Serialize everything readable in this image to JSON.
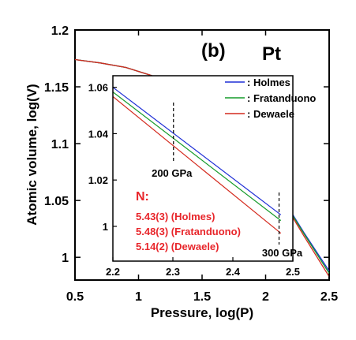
{
  "chart_data": [
    {
      "type": "line",
      "panel_label": "(b)",
      "element_label": "Pt",
      "xlabel": "Pressure, log(P)",
      "ylabel": "Atomic volume, log(V)",
      "xlim": [
        0.5,
        2.5
      ],
      "ylim": [
        0.98,
        1.2
      ],
      "x_ticks": [
        "0.5",
        "1",
        "1.5",
        "2",
        "2.5"
      ],
      "y_ticks": [
        "1",
        "1.05",
        "1.1",
        "1.15",
        "1.2"
      ],
      "series": [
        {
          "name": ": Holmes",
          "color": "#1f2fd6",
          "x": [
            0.5,
            0.7,
            0.9,
            1.1,
            1.3,
            1.5,
            1.7,
            1.9,
            2.1,
            2.3,
            2.5
          ],
          "y": [
            1.174,
            1.171,
            1.167,
            1.16,
            1.15,
            1.136,
            1.116,
            1.09,
            1.058,
            1.022,
            0.988
          ]
        },
        {
          "name": ": Fratanduono",
          "color": "#159b2a",
          "x": [
            0.5,
            0.7,
            0.9,
            1.1,
            1.3,
            1.5,
            1.7,
            1.9,
            2.1,
            2.3,
            2.5
          ],
          "y": [
            1.174,
            1.171,
            1.167,
            1.16,
            1.15,
            1.136,
            1.116,
            1.09,
            1.057,
            1.021,
            0.986
          ]
        },
        {
          "name": ": Dewaele",
          "color": "#d42a1e",
          "x": [
            0.5,
            0.7,
            0.9,
            1.1,
            1.3,
            1.5,
            1.7,
            1.9,
            2.1,
            2.3,
            2.5
          ],
          "y": [
            1.174,
            1.171,
            1.167,
            1.16,
            1.15,
            1.135,
            1.115,
            1.089,
            1.056,
            1.019,
            0.983
          ]
        }
      ],
      "legend_position": "top-right"
    },
    {
      "type": "line",
      "inset": true,
      "xlim": [
        2.2,
        2.5
      ],
      "ylim": [
        0.985,
        1.065
      ],
      "x_ticks": [
        "2.2",
        "2.3",
        "2.4",
        "2.5"
      ],
      "y_ticks": [
        "1",
        "1.02",
        "1.04",
        "1.06"
      ],
      "series": [
        {
          "color": "#1f2fd6",
          "x": [
            2.2,
            2.48
          ],
          "y": [
            1.06,
            1.005
          ]
        },
        {
          "color": "#159b2a",
          "x": [
            2.2,
            2.48
          ],
          "y": [
            1.058,
            1.0025
          ]
        },
        {
          "color": "#d42a1e",
          "x": [
            2.2,
            2.48
          ],
          "y": [
            1.056,
            0.997
          ]
        }
      ],
      "annotations": [
        {
          "text": "200 GPa",
          "x": 2.301
        },
        {
          "text": "300 GPa",
          "x": 2.477
        }
      ],
      "n_title": "N:",
      "n_values": [
        "5.43(3) (Holmes)",
        "5.48(3) (Fratanduono)",
        "5.14(2) (Dewaele)"
      ]
    }
  ]
}
